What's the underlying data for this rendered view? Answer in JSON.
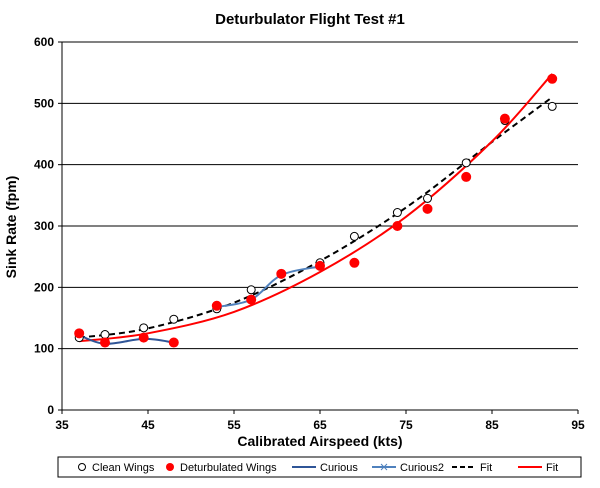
{
  "chart_data": {
    "type": "scatter",
    "title": "Deturbulator Flight Test #1",
    "xlabel": "Calibrated Airspeed  (kts)",
    "ylabel": "Sink Rate (fpm)",
    "xlim": [
      35,
      95
    ],
    "ylim": [
      0,
      600
    ],
    "xticks": [
      35,
      45,
      55,
      65,
      75,
      85,
      95
    ],
    "yticks": [
      0,
      100,
      200,
      300,
      400,
      500,
      600
    ],
    "grid": "horizontal",
    "legend_position": "bottom",
    "series": [
      {
        "name": "Clean Wings",
        "kind": "markers",
        "marker": "open-circle",
        "color": "#000000",
        "points": [
          [
            37,
            118
          ],
          [
            40,
            123
          ],
          [
            44.5,
            134
          ],
          [
            48,
            148
          ],
          [
            53,
            165
          ],
          [
            57,
            196
          ],
          [
            65,
            240
          ],
          [
            69,
            283
          ],
          [
            74,
            322
          ],
          [
            77.5,
            345
          ],
          [
            82,
            403
          ],
          [
            86.5,
            472
          ],
          [
            92,
            495
          ]
        ]
      },
      {
        "name": "Deturbulated Wings",
        "kind": "markers",
        "marker": "filled-circle",
        "color": "#ff0000",
        "points": [
          [
            37,
            125
          ],
          [
            40,
            110
          ],
          [
            44.5,
            118
          ],
          [
            48,
            110
          ],
          [
            53,
            170
          ],
          [
            57,
            180
          ],
          [
            60.5,
            222
          ],
          [
            65,
            235
          ],
          [
            69,
            240
          ],
          [
            74,
            300
          ],
          [
            77.5,
            328
          ],
          [
            82,
            380
          ],
          [
            86.5,
            475
          ],
          [
            92,
            540
          ]
        ]
      },
      {
        "name": "Curious",
        "kind": "line",
        "color": "#2f5597",
        "points": [
          [
            37,
            122
          ],
          [
            40,
            108
          ],
          [
            44.5,
            116
          ],
          [
            48,
            110
          ]
        ]
      },
      {
        "name": "Curious2",
        "kind": "line",
        "color": "#4f81bd",
        "points": [
          [
            53,
            168
          ],
          [
            57,
            180
          ],
          [
            60.5,
            220
          ],
          [
            65,
            234
          ]
        ]
      },
      {
        "name": "Fit",
        "kind": "curve",
        "dash": "dashed",
        "color": "#000000",
        "points": [
          [
            37,
            118
          ],
          [
            45,
            133
          ],
          [
            55,
            175
          ],
          [
            65,
            243
          ],
          [
            75,
            330
          ],
          [
            85,
            437
          ],
          [
            92,
            510
          ]
        ]
      },
      {
        "name": "Fit",
        "kind": "curve",
        "dash": "solid",
        "color": "#ff0000",
        "points": [
          [
            37,
            112
          ],
          [
            45,
            125
          ],
          [
            55,
            160
          ],
          [
            65,
            225
          ],
          [
            75,
            315
          ],
          [
            85,
            438
          ],
          [
            92,
            548
          ]
        ]
      }
    ]
  }
}
